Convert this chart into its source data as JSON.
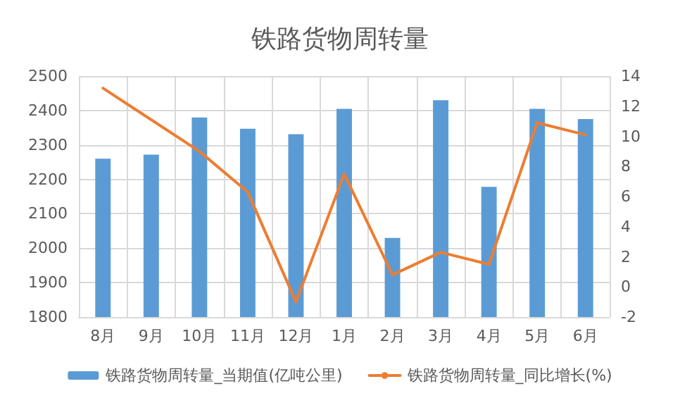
{
  "chart_data": {
    "type": "bar",
    "title": "铁路货物周转量",
    "categories": [
      "8月",
      "9月",
      "10月",
      "11月",
      "12月",
      "1月",
      "2月",
      "3月",
      "4月",
      "5月",
      "6月"
    ],
    "series": [
      {
        "name": "铁路货物周转量_当期值(亿吨公里)",
        "color": "#5b9bd5",
        "values": [
          2260,
          2272,
          2380,
          2347,
          2331,
          2405,
          2030,
          2430,
          2178,
          2405,
          2375
        ]
      },
      {
        "name": "铁路货物周转量_同比增长(%)",
        "type": "line",
        "axis": "y2",
        "color": "#ed7d31",
        "values": [
          13.2,
          11.1,
          9.0,
          6.3,
          -1.0,
          7.5,
          0.8,
          2.3,
          1.5,
          10.9,
          10.1
        ]
      }
    ],
    "ylim": [
      1800,
      2500
    ],
    "yticks": [
      1800,
      1900,
      2000,
      2100,
      2200,
      2300,
      2400,
      2500
    ],
    "y2lim": [
      -2,
      14
    ],
    "y2ticks": [
      -2,
      0,
      2,
      4,
      6,
      8,
      10,
      12,
      14
    ],
    "grid": true,
    "legend": "bottom",
    "marker": "none",
    "line_style": "solid"
  }
}
